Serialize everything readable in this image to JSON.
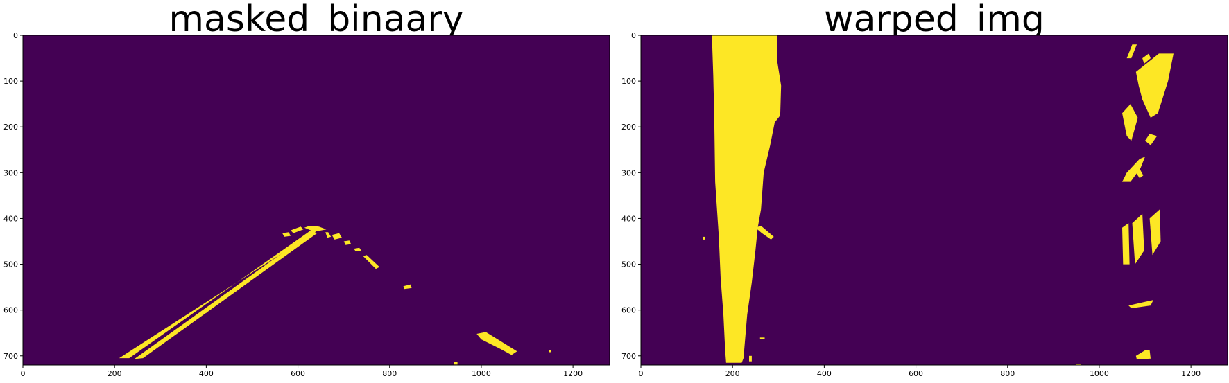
{
  "chart_data": [
    {
      "type": "heatmap",
      "title": "masked_binaary",
      "xlim": [
        0,
        1280
      ],
      "ylim": [
        720,
        0
      ],
      "xticks": [
        0,
        200,
        400,
        600,
        800,
        1000,
        1200
      ],
      "yticks": [
        0,
        100,
        200,
        300,
        400,
        500,
        600,
        700
      ],
      "colors": {
        "background": "#440154",
        "foreground": "#fde725"
      },
      "features": [
        {
          "kind": "polygon",
          "points": [
            [
              210,
              705
            ],
            [
              232,
              705
            ],
            [
              628,
              426
            ],
            [
              614,
              420
            ],
            [
              626,
              416
            ],
            [
              646,
              418
            ],
            [
              662,
              424
            ],
            [
              640,
              428
            ]
          ]
        },
        {
          "kind": "polygon",
          "points": [
            [
              243,
              707
            ],
            [
              262,
              705
            ],
            [
              642,
              432
            ],
            [
              632,
              428
            ]
          ]
        },
        {
          "kind": "polygon",
          "points": [
            [
              584,
              426
            ],
            [
              606,
              418
            ],
            [
              612,
              424
            ],
            [
              590,
              432
            ]
          ]
        },
        {
          "kind": "polygon",
          "points": [
            [
              566,
              432
            ],
            [
              580,
              430
            ],
            [
              584,
              438
            ],
            [
              570,
              440
            ]
          ]
        },
        {
          "kind": "polygon",
          "points": [
            [
              674,
              436
            ],
            [
              690,
              432
            ],
            [
              696,
              442
            ],
            [
              680,
              446
            ]
          ]
        },
        {
          "kind": "polygon",
          "points": [
            [
              700,
              450
            ],
            [
              712,
              448
            ],
            [
              716,
              456
            ],
            [
              704,
              458
            ]
          ]
        },
        {
          "kind": "polygon",
          "points": [
            [
              722,
              466
            ],
            [
              734,
              464
            ],
            [
              738,
              470
            ],
            [
              726,
              472
            ]
          ]
        },
        {
          "kind": "polygon",
          "points": [
            [
              742,
              482
            ],
            [
              750,
              480
            ],
            [
              778,
              506
            ],
            [
              770,
              510
            ]
          ]
        },
        {
          "kind": "polygon",
          "points": [
            [
              830,
              548
            ],
            [
              846,
              544
            ],
            [
              848,
              552
            ],
            [
              832,
              554
            ]
          ]
        },
        {
          "kind": "polygon",
          "points": [
            [
              990,
              652
            ],
            [
              1010,
              648
            ],
            [
              1078,
              690
            ],
            [
              1066,
              698
            ],
            [
              1040,
              684
            ],
            [
              1000,
              664
            ]
          ]
        },
        {
          "kind": "polygon",
          "points": [
            [
              660,
              430
            ],
            [
              666,
              430
            ],
            [
              672,
              440
            ],
            [
              664,
              442
            ]
          ]
        },
        {
          "kind": "polygon",
          "points": [
            [
              392,
              600
            ],
            [
              400,
              600
            ],
            [
              402,
              606
            ],
            [
              394,
              606
            ]
          ]
        },
        {
          "kind": "polygon",
          "points": [
            [
              940,
              714
            ],
            [
              948,
              714
            ],
            [
              948,
              719
            ],
            [
              940,
              719
            ]
          ]
        },
        {
          "kind": "polygon",
          "points": [
            [
              1148,
              688
            ],
            [
              1152,
              688
            ],
            [
              1152,
              692
            ],
            [
              1148,
              692
            ]
          ]
        }
      ]
    },
    {
      "type": "heatmap",
      "title": "warped_img",
      "xlim": [
        0,
        1280
      ],
      "ylim": [
        720,
        0
      ],
      "xticks": [
        0,
        200,
        400,
        600,
        800,
        1000,
        1200
      ],
      "yticks": [
        0,
        100,
        200,
        300,
        400,
        500,
        600,
        700
      ],
      "colors": {
        "background": "#440154",
        "foreground": "#fde725"
      },
      "features": [
        {
          "kind": "polygon",
          "points": [
            [
              155,
              0
            ],
            [
              298,
              0
            ],
            [
              298,
              60
            ],
            [
              306,
              110
            ],
            [
              304,
              175
            ],
            [
              292,
              190
            ],
            [
              282,
              240
            ],
            [
              268,
              300
            ],
            [
              262,
              380
            ],
            [
              255,
              420
            ],
            [
              250,
              470
            ],
            [
              242,
              540
            ],
            [
              232,
              610
            ],
            [
              226,
              680
            ],
            [
              224,
              705
            ],
            [
              220,
              715
            ],
            [
              186,
              715
            ],
            [
              184,
              690
            ],
            [
              180,
              610
            ],
            [
              174,
              530
            ],
            [
              170,
              440
            ],
            [
              162,
              320
            ],
            [
              160,
              180
            ],
            [
              158,
              90
            ]
          ]
        },
        {
          "kind": "polygon",
          "points": [
            [
              250,
              420
            ],
            [
              262,
              416
            ],
            [
              290,
              440
            ],
            [
              284,
              446
            ],
            [
              264,
              432
            ]
          ]
        },
        {
          "kind": "polygon",
          "points": [
            [
              186,
              348
            ],
            [
              194,
              350
            ],
            [
              202,
              372
            ],
            [
              194,
              372
            ]
          ]
        },
        {
          "kind": "polygon",
          "points": [
            [
              136,
              440
            ],
            [
              140,
              440
            ],
            [
              140,
              446
            ],
            [
              136,
              446
            ]
          ]
        },
        {
          "kind": "polygon",
          "points": [
            [
              1060,
              50
            ],
            [
              1072,
              20
            ],
            [
              1082,
              20
            ],
            [
              1070,
              50
            ]
          ]
        },
        {
          "kind": "polygon",
          "points": [
            [
              1094,
              50
            ],
            [
              1108,
              40
            ],
            [
              1112,
              50
            ],
            [
              1098,
              62
            ]
          ]
        },
        {
          "kind": "polygon",
          "points": [
            [
              1080,
              80
            ],
            [
              1130,
              40
            ],
            [
              1162,
              40
            ],
            [
              1150,
              100
            ],
            [
              1128,
              170
            ],
            [
              1112,
              180
            ],
            [
              1094,
              140
            ],
            [
              1086,
              110
            ]
          ]
        },
        {
          "kind": "polygon",
          "points": [
            [
              1050,
              170
            ],
            [
              1068,
              150
            ],
            [
              1084,
              180
            ],
            [
              1070,
              230
            ],
            [
              1060,
              220
            ]
          ]
        },
        {
          "kind": "polygon",
          "points": [
            [
              1100,
              230
            ],
            [
              1110,
              215
            ],
            [
              1126,
              220
            ],
            [
              1112,
              240
            ]
          ]
        },
        {
          "kind": "polygon",
          "points": [
            [
              1050,
              320
            ],
            [
              1060,
              300
            ],
            [
              1088,
              270
            ],
            [
              1100,
              265
            ],
            [
              1090,
              290
            ],
            [
              1068,
              320
            ]
          ]
        },
        {
          "kind": "polygon",
          "points": [
            [
              1074,
              290
            ],
            [
              1084,
              284
            ],
            [
              1096,
              306
            ],
            [
              1088,
              312
            ]
          ]
        },
        {
          "kind": "polygon",
          "points": [
            [
              1050,
              420
            ],
            [
              1064,
              410
            ],
            [
              1066,
              500
            ],
            [
              1052,
              500
            ]
          ]
        },
        {
          "kind": "polygon",
          "points": [
            [
              1072,
              410
            ],
            [
              1094,
              390
            ],
            [
              1098,
              470
            ],
            [
              1078,
              500
            ]
          ]
        },
        {
          "kind": "polygon",
          "points": [
            [
              1110,
              400
            ],
            [
              1132,
              380
            ],
            [
              1134,
              450
            ],
            [
              1116,
              480
            ]
          ]
        },
        {
          "kind": "polygon",
          "points": [
            [
              1064,
              590
            ],
            [
              1118,
              578
            ],
            [
              1112,
              590
            ],
            [
              1070,
              596
            ]
          ]
        },
        {
          "kind": "polygon",
          "points": [
            [
              1080,
              700
            ],
            [
              1100,
              688
            ],
            [
              1110,
              688
            ],
            [
              1112,
              706
            ],
            [
              1082,
              708
            ]
          ]
        },
        {
          "kind": "polygon",
          "points": [
            [
              950,
              718
            ],
            [
              960,
              718
            ],
            [
              960,
              720
            ],
            [
              950,
              720
            ]
          ]
        },
        {
          "kind": "polygon",
          "points": [
            [
              260,
              660
            ],
            [
              270,
              660
            ],
            [
              270,
              664
            ],
            [
              260,
              664
            ]
          ]
        },
        {
          "kind": "polygon",
          "points": [
            [
              236,
              700
            ],
            [
              242,
              700
            ],
            [
              242,
              712
            ],
            [
              236,
              712
            ]
          ]
        }
      ]
    }
  ]
}
